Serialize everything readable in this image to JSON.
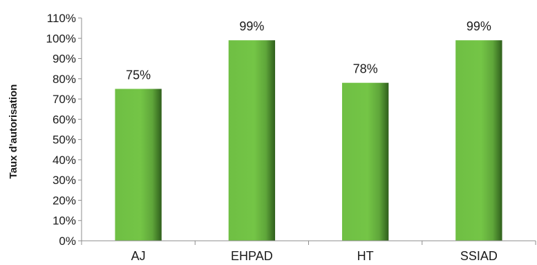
{
  "chart_data": {
    "type": "bar",
    "title": "",
    "xlabel": "",
    "ylabel": "Taux d'autorisation",
    "categories": [
      "AJ",
      "EHPAD",
      "HT",
      "SSIAD"
    ],
    "values": [
      75,
      99,
      78,
      99
    ],
    "data_labels": [
      "75%",
      "99%",
      "78%",
      "99%"
    ],
    "ylim": [
      0,
      110
    ],
    "y_ticks": [
      0,
      10,
      20,
      30,
      40,
      50,
      60,
      70,
      80,
      90,
      100,
      110
    ],
    "y_tick_labels": [
      "0%",
      "10%",
      "20%",
      "30%",
      "40%",
      "50%",
      "60%",
      "70%",
      "80%",
      "90%",
      "100%",
      "110%"
    ],
    "grid": false,
    "legend": "none",
    "colors": {
      "bar_light": "#7ccc4a",
      "bar_mid": "#63b23a",
      "bar_dark": "#2f5f1c"
    }
  }
}
